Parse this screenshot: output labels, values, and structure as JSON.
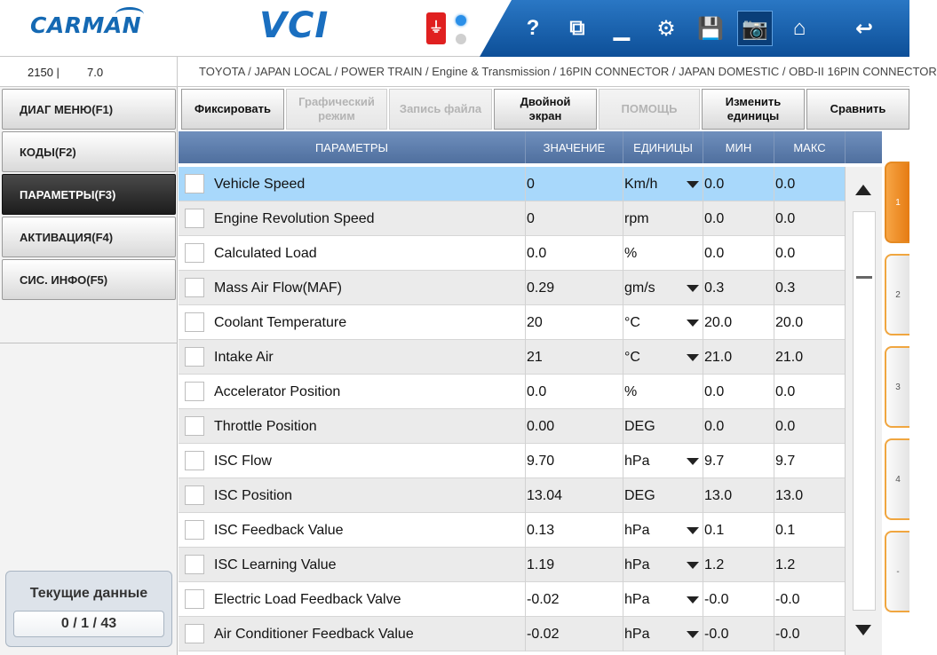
{
  "header": {
    "logo_carman": "CARMAN",
    "logo_vci": "VCI",
    "toolbar": [
      {
        "name": "help-icon",
        "glyph": "?"
      },
      {
        "name": "window-icon",
        "glyph": "⧉"
      },
      {
        "name": "minimize-icon",
        "glyph": "▁"
      },
      {
        "name": "settings-icon",
        "glyph": "⚙"
      },
      {
        "name": "save-icon",
        "glyph": "💾"
      },
      {
        "name": "camera-icon",
        "glyph": "📷"
      },
      {
        "name": "home-icon",
        "glyph": "⌂"
      },
      {
        "name": "back-icon",
        "glyph": "↩"
      }
    ]
  },
  "infobar": {
    "version_left": "2150  |",
    "version_right": "7.0",
    "breadcrumb": "TOYOTA / JAPAN LOCAL / POWER TRAIN / Engine & Transmission / 16PIN CONNECTOR / JAPAN DOMESTIC / OBD-II 16PIN CONNECTOR"
  },
  "sidebar": {
    "items": [
      {
        "label": "ДИАГ МЕНЮ(F1)",
        "active": false
      },
      {
        "label": "КОДЫ(F2)",
        "active": false
      },
      {
        "label": "ПАРАМЕТРЫ(F3)",
        "active": true
      },
      {
        "label": "АКТИВАЦИЯ(F4)",
        "active": false
      },
      {
        "label": "СИС. ИНФО(F5)",
        "active": false
      }
    ],
    "counter_title": "Текущие данные",
    "counter_value": "0 / 1 / 43"
  },
  "functions": [
    {
      "label": "Фиксировать",
      "enabled": true
    },
    {
      "label": "Графический\nрежим",
      "enabled": false
    },
    {
      "label": "Запись файла",
      "enabled": false
    },
    {
      "label": "Двойной\nэкран",
      "enabled": true
    },
    {
      "label": "ПОМОЩЬ",
      "enabled": false
    },
    {
      "label": "Изменить\nединицы",
      "enabled": true
    },
    {
      "label": "Сравнить",
      "enabled": true
    }
  ],
  "table": {
    "headers": {
      "param": "ПАРАМЕТРЫ",
      "value": "ЗНАЧЕНИЕ",
      "units": "ЕДИНИЦЫ",
      "min": "МИН",
      "max": "МАКС"
    },
    "rows": [
      {
        "name": "Vehicle Speed",
        "value": "0",
        "unit": "Km/h",
        "dropdown": true,
        "min": "0.0",
        "max": "0.0",
        "selected": true
      },
      {
        "name": "Engine Revolution Speed",
        "value": "0",
        "unit": "rpm",
        "dropdown": false,
        "min": "0.0",
        "max": "0.0"
      },
      {
        "name": "Calculated Load",
        "value": "0.0",
        "unit": "%",
        "dropdown": false,
        "min": "0.0",
        "max": "0.0"
      },
      {
        "name": "Mass Air Flow(MAF)",
        "value": "0.29",
        "unit": "gm/s",
        "dropdown": true,
        "min": "0.3",
        "max": "0.3"
      },
      {
        "name": "Coolant Temperature",
        "value": "20",
        "unit": "°C",
        "dropdown": true,
        "min": "20.0",
        "max": "20.0"
      },
      {
        "name": "Intake Air",
        "value": "21",
        "unit": "°C",
        "dropdown": true,
        "min": "21.0",
        "max": "21.0"
      },
      {
        "name": "Accelerator Position",
        "value": "0.0",
        "unit": "%",
        "dropdown": false,
        "min": "0.0",
        "max": "0.0"
      },
      {
        "name": "Throttle Position",
        "value": "0.00",
        "unit": "DEG",
        "dropdown": false,
        "min": "0.0",
        "max": "0.0"
      },
      {
        "name": "ISC Flow",
        "value": "9.70",
        "unit": "hPa",
        "dropdown": true,
        "min": "9.7",
        "max": "9.7"
      },
      {
        "name": "ISC Position",
        "value": "13.04",
        "unit": "DEG",
        "dropdown": false,
        "min": "13.0",
        "max": "13.0"
      },
      {
        "name": "ISC Feedback Value",
        "value": "0.13",
        "unit": "hPa",
        "dropdown": true,
        "min": "0.1",
        "max": "0.1"
      },
      {
        "name": "ISC Learning Value",
        "value": "1.19",
        "unit": "hPa",
        "dropdown": true,
        "min": "1.2",
        "max": "1.2"
      },
      {
        "name": "Electric Load Feedback Valve",
        "value": "-0.02",
        "unit": "hPa",
        "dropdown": true,
        "min": "-0.0",
        "max": "-0.0"
      },
      {
        "name": "Air Conditioner Feedback Value",
        "value": "-0.02",
        "unit": "hPa",
        "dropdown": true,
        "min": "-0.0",
        "max": "-0.0"
      }
    ]
  },
  "page_tabs": [
    {
      "label": "1",
      "active": true
    },
    {
      "label": "2",
      "active": false
    },
    {
      "label": "3",
      "active": false
    },
    {
      "label": "4",
      "active": false
    },
    {
      "label": "-",
      "active": false
    }
  ],
  "colors": {
    "header_blue": "#1569b3",
    "table_header": "#5f7fae",
    "selected_row": "#a8d8fb",
    "tab_orange": "#f0a640"
  }
}
